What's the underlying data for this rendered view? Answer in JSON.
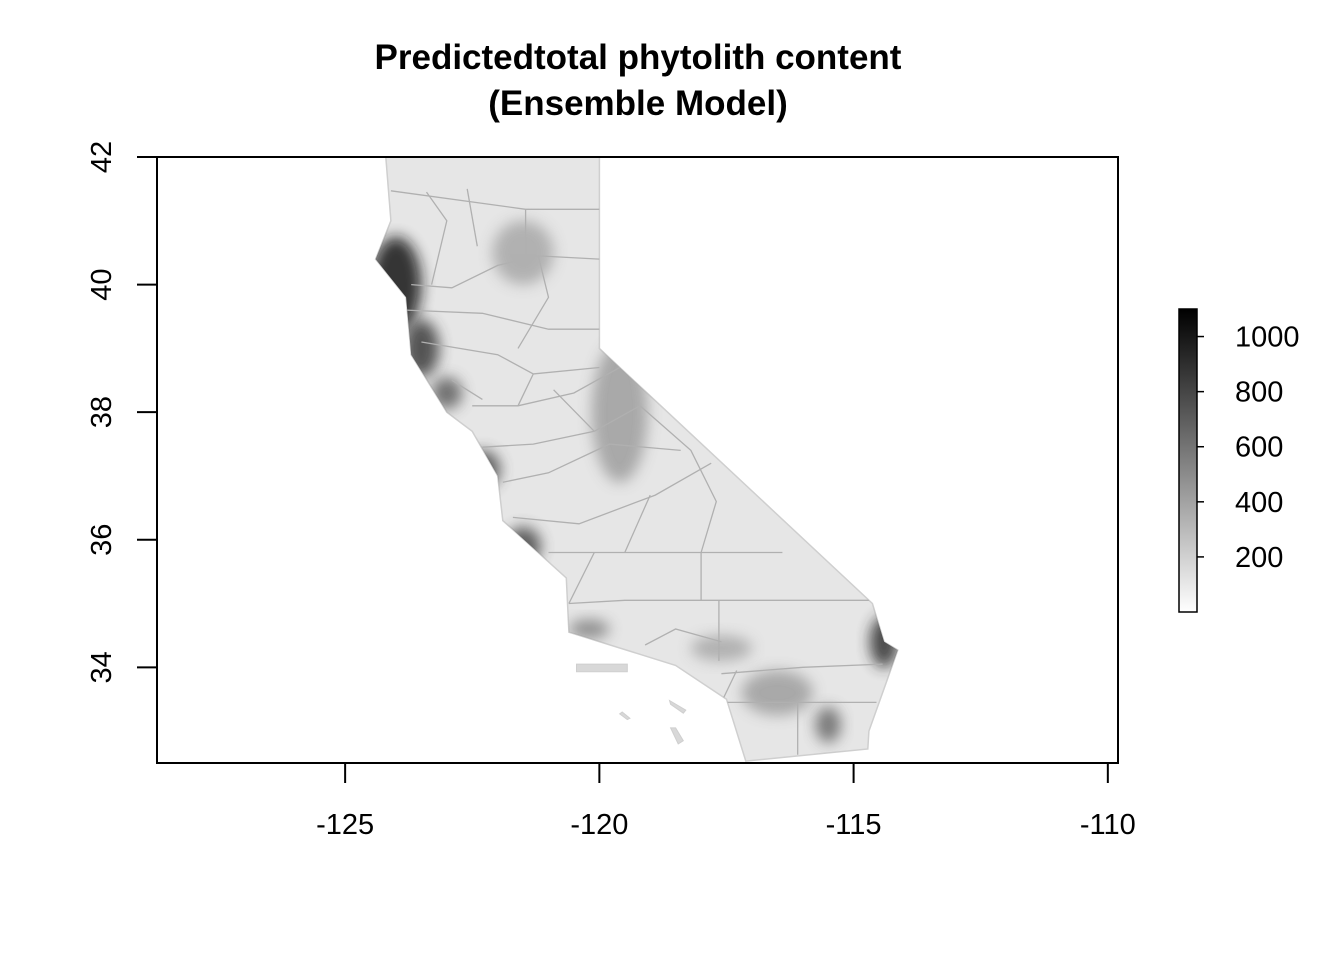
{
  "title": {
    "line1": "Predictedtotal phytolith content",
    "line2": "(Ensemble Model)"
  },
  "map": {
    "x_ticks": [
      -125,
      -120,
      -115,
      -110
    ],
    "y_ticks": [
      34,
      36,
      38,
      40,
      42
    ],
    "x_tick_labels": [
      "-125",
      "-120",
      "-115",
      "-110"
    ],
    "y_tick_labels": [
      "34",
      "36",
      "38",
      "40",
      "42"
    ],
    "xlim": [
      -128.7,
      -109.8
    ],
    "ylim": [
      32.5,
      42.0
    ],
    "region_outline": [
      [
        -124.2,
        42.0
      ],
      [
        -120.0,
        42.0
      ],
      [
        -120.0,
        39.0
      ],
      [
        -114.63,
        35.0
      ],
      [
        -114.4,
        34.4
      ],
      [
        -114.13,
        34.27
      ],
      [
        -114.7,
        33.0
      ],
      [
        -114.72,
        32.72
      ],
      [
        -117.12,
        32.53
      ],
      [
        -117.5,
        33.5
      ],
      [
        -118.5,
        34.03
      ],
      [
        -120.6,
        34.55
      ],
      [
        -120.65,
        35.4
      ],
      [
        -121.9,
        36.3
      ],
      [
        -122.0,
        37.0
      ],
      [
        -122.5,
        37.7
      ],
      [
        -123.0,
        38.0
      ],
      [
        -123.7,
        38.9
      ],
      [
        -123.8,
        39.8
      ],
      [
        -124.4,
        40.4
      ],
      [
        -124.1,
        41.0
      ],
      [
        -124.2,
        42.0
      ]
    ],
    "islands": [
      [
        [
          -120.45,
          34.05
        ],
        [
          -119.45,
          34.05
        ],
        [
          -119.45,
          33.93
        ],
        [
          -120.45,
          33.93
        ]
      ],
      [
        [
          -118.62,
          33.48
        ],
        [
          -118.3,
          33.33
        ],
        [
          -118.35,
          33.28
        ],
        [
          -118.6,
          33.42
        ]
      ],
      [
        [
          -118.6,
          33.05
        ],
        [
          -118.45,
          32.8
        ],
        [
          -118.35,
          32.85
        ],
        [
          -118.5,
          33.05
        ]
      ],
      [
        [
          -119.55,
          33.3
        ],
        [
          -119.4,
          33.2
        ],
        [
          -119.45,
          33.18
        ],
        [
          -119.6,
          33.27
        ]
      ]
    ],
    "county_lines": [
      [
        [
          -124.1,
          41.47
        ],
        [
          -121.45,
          41.18
        ],
        [
          -120.0,
          41.18
        ]
      ],
      [
        [
          -123.7,
          40.0
        ],
        [
          -122.9,
          39.95
        ],
        [
          -122.0,
          40.3
        ],
        [
          -121.2,
          40.45
        ],
        [
          -120.0,
          40.4
        ]
      ],
      [
        [
          -123.8,
          39.6
        ],
        [
          -122.3,
          39.55
        ],
        [
          -121.0,
          39.3
        ],
        [
          -120.0,
          39.3
        ]
      ],
      [
        [
          -123.5,
          39.1
        ],
        [
          -122.0,
          38.9
        ],
        [
          -121.3,
          38.6
        ],
        [
          -120.0,
          38.7
        ]
      ],
      [
        [
          -122.5,
          38.1
        ],
        [
          -121.6,
          38.1
        ],
        [
          -120.5,
          38.3
        ],
        [
          -119.6,
          38.7
        ]
      ],
      [
        [
          -122.3,
          37.45
        ],
        [
          -121.3,
          37.5
        ],
        [
          -120.1,
          37.7
        ],
        [
          -119.2,
          38.1
        ]
      ],
      [
        [
          -121.9,
          36.9
        ],
        [
          -121.0,
          37.05
        ],
        [
          -119.8,
          37.5
        ],
        [
          -118.4,
          37.4
        ]
      ],
      [
        [
          -121.7,
          36.35
        ],
        [
          -120.4,
          36.25
        ],
        [
          -118.9,
          36.7
        ],
        [
          -117.8,
          37.2
        ]
      ],
      [
        [
          -121.0,
          35.8
        ],
        [
          -118.0,
          35.8
        ],
        [
          -116.4,
          35.8
        ]
      ],
      [
        [
          -120.6,
          35.0
        ],
        [
          -119.5,
          35.05
        ],
        [
          -118.0,
          35.05
        ],
        [
          -114.7,
          35.05
        ]
      ],
      [
        [
          -119.1,
          34.35
        ],
        [
          -118.5,
          34.6
        ],
        [
          -117.6,
          34.4
        ]
      ],
      [
        [
          -117.6,
          33.9
        ],
        [
          -116.0,
          34.0
        ],
        [
          -114.43,
          34.05
        ]
      ],
      [
        [
          -117.6,
          33.45
        ],
        [
          -116.1,
          33.45
        ],
        [
          -114.55,
          33.45
        ]
      ],
      [
        [
          -117.3,
          33.95
        ],
        [
          -117.6,
          33.45
        ]
      ],
      [
        [
          -118.0,
          35.8
        ],
        [
          -117.7,
          36.6
        ],
        [
          -118.2,
          37.4
        ],
        [
          -119.2,
          38.1
        ]
      ],
      [
        [
          -118.0,
          35.05
        ],
        [
          -118.0,
          35.8
        ]
      ],
      [
        [
          -117.65,
          35.05
        ],
        [
          -117.65,
          34.1
        ]
      ],
      [
        [
          -116.1,
          33.45
        ],
        [
          -116.1,
          32.63
        ]
      ],
      [
        [
          -120.9,
          38.35
        ],
        [
          -120.1,
          37.7
        ]
      ],
      [
        [
          -122.4,
          40.6
        ],
        [
          -122.6,
          41.5
        ]
      ],
      [
        [
          -121.45,
          41.18
        ],
        [
          -121.45,
          40.45
        ]
      ],
      [
        [
          -123.3,
          40.0
        ],
        [
          -123.0,
          41.0
        ],
        [
          -123.4,
          41.45
        ]
      ],
      [
        [
          -121.6,
          39.0
        ],
        [
          -121.0,
          39.8
        ],
        [
          -121.2,
          40.45
        ]
      ],
      [
        [
          -121.6,
          38.1
        ],
        [
          -121.3,
          38.6
        ]
      ],
      [
        [
          -120.6,
          35.0
        ],
        [
          -120.1,
          35.8
        ]
      ],
      [
        [
          -119.0,
          36.7
        ],
        [
          -119.5,
          35.8
        ]
      ],
      [
        [
          -122.9,
          38.5
        ],
        [
          -122.3,
          38.2
        ]
      ]
    ],
    "dark_zones": [
      {
        "lon": -124.0,
        "lat": 40.0,
        "rx": 0.5,
        "ry": 0.75,
        "value": 1000
      },
      {
        "lon": -123.5,
        "lat": 39.0,
        "rx": 0.35,
        "ry": 0.45,
        "value": 850
      },
      {
        "lon": -123.0,
        "lat": 38.3,
        "rx": 0.3,
        "ry": 0.25,
        "value": 700
      },
      {
        "lon": -122.3,
        "lat": 37.1,
        "rx": 0.35,
        "ry": 0.3,
        "value": 800
      },
      {
        "lon": -121.5,
        "lat": 35.9,
        "rx": 0.35,
        "ry": 0.3,
        "value": 800
      },
      {
        "lon": -120.2,
        "lat": 34.6,
        "rx": 0.4,
        "ry": 0.15,
        "value": 550
      },
      {
        "lon": -114.4,
        "lat": 34.4,
        "rx": 0.28,
        "ry": 0.4,
        "value": 900
      },
      {
        "lon": -115.5,
        "lat": 33.1,
        "rx": 0.25,
        "ry": 0.28,
        "value": 650
      },
      {
        "lon": -119.6,
        "lat": 38.0,
        "rx": 0.55,
        "ry": 1.1,
        "value": 420
      },
      {
        "lon": -121.5,
        "lat": 40.5,
        "rx": 0.6,
        "ry": 0.5,
        "value": 380
      },
      {
        "lon": -116.5,
        "lat": 33.6,
        "rx": 0.7,
        "ry": 0.35,
        "value": 420
      },
      {
        "lon": -117.6,
        "lat": 34.3,
        "rx": 0.6,
        "ry": 0.2,
        "value": 380
      }
    ]
  },
  "legend": {
    "ticks": [
      200,
      400,
      600,
      800,
      1000
    ],
    "tick_labels": [
      "200",
      "400",
      "600",
      "800",
      "1000"
    ],
    "range": [
      0,
      1100
    ],
    "color_low": "#ffffff",
    "color_high": "#000000"
  },
  "colors": {
    "axis": "#000000",
    "land_base": "#e6e6e6",
    "county_line": "#b0b0b0",
    "coast_line": "#cfcfcf"
  }
}
